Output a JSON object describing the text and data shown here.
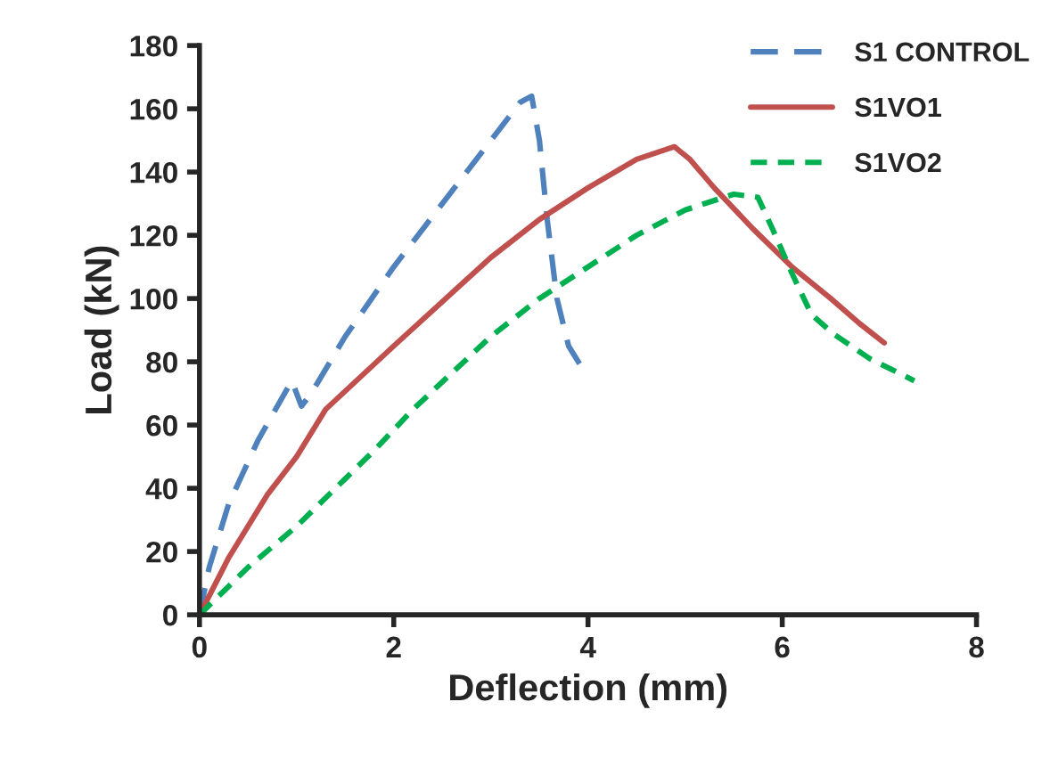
{
  "chart_data": {
    "type": "line",
    "xlabel": "Deflection (mm)",
    "ylabel": "Load (kN)",
    "xlim": [
      0,
      8
    ],
    "ylim": [
      0,
      180
    ],
    "xticks": [
      0,
      2,
      4,
      6,
      8
    ],
    "yticks": [
      0,
      20,
      40,
      60,
      80,
      100,
      120,
      140,
      160,
      180
    ],
    "grid": false,
    "legend": "top right",
    "series": [
      {
        "name": "S1 CONTROL",
        "color": "#4f81bd",
        "line_style": "dashed",
        "x": [
          0,
          0.1,
          0.3,
          0.6,
          0.95,
          1.05,
          1.15,
          1.5,
          2,
          2.5,
          3,
          3.3,
          3.42,
          3.5,
          3.58,
          3.68,
          3.8,
          3.96
        ],
        "values": [
          0,
          15,
          35,
          55,
          74,
          66,
          70,
          88,
          110,
          130,
          150,
          162,
          164,
          150,
          125,
          100,
          85,
          77
        ]
      },
      {
        "name": "S1VO1",
        "color": "#c0504d",
        "line_style": "solid",
        "x": [
          0,
          0.3,
          0.7,
          1,
          1.3,
          2,
          3,
          3.5,
          4,
          4.5,
          4.89,
          5.05,
          5.3,
          5.7,
          6.1,
          6.5,
          6.8,
          7.05
        ],
        "values": [
          0,
          18,
          38,
          50,
          65,
          85,
          113,
          125,
          135,
          144,
          148,
          144,
          135,
          122,
          110,
          100,
          92,
          86
        ]
      },
      {
        "name": "S1VO2",
        "color": "#00b050",
        "line_style": "dotted",
        "x": [
          0,
          0.5,
          1,
          1.5,
          1.8,
          2.2,
          3,
          3.5,
          4,
          4.5,
          5,
          5.5,
          5.75,
          5.9,
          6.1,
          6.3,
          6.52,
          6.9,
          7.36
        ],
        "values": [
          0,
          15,
          28,
          43,
          52,
          65,
          88,
          100,
          110,
          120,
          128,
          133,
          132,
          122,
          108,
          95,
          89,
          81,
          74
        ]
      }
    ]
  }
}
